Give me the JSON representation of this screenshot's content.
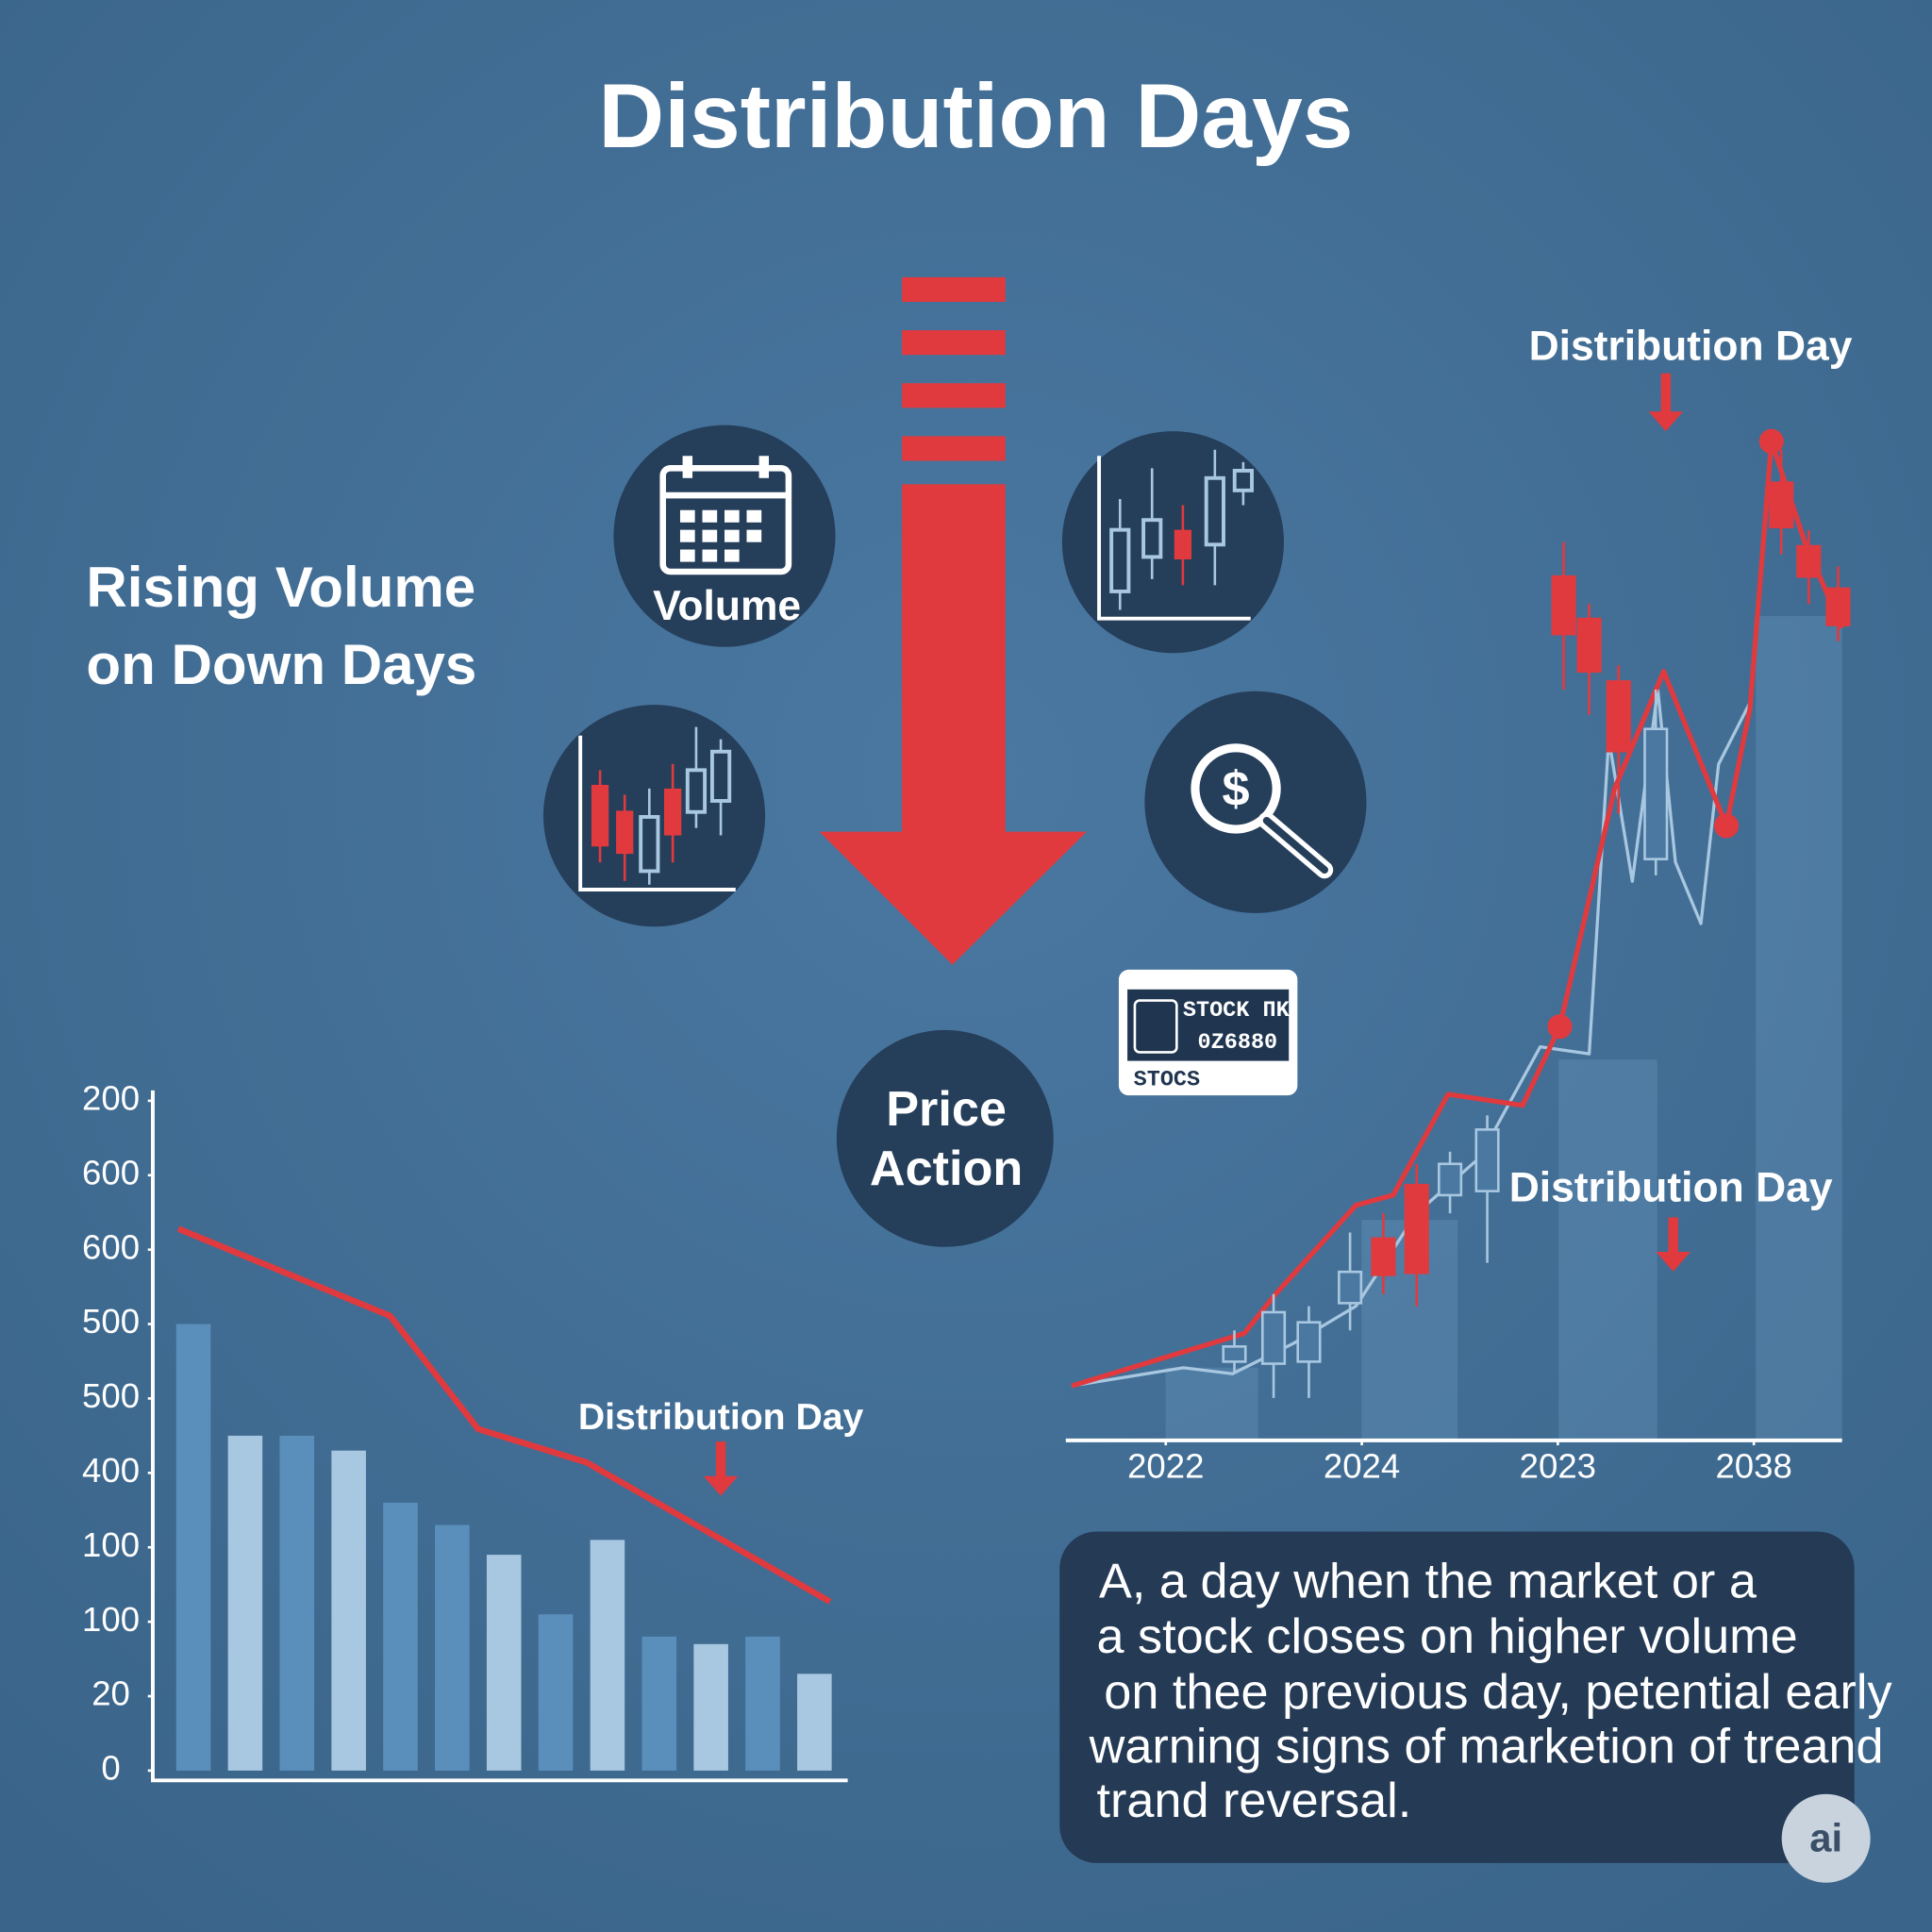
{
  "title": "Distribution Days",
  "subtitle_lines": [
    "Rising Volume",
    "on Down Days"
  ],
  "icons": {
    "volume": "Volume",
    "price_action_lines": [
      "Price",
      "Action"
    ]
  },
  "ticker_card": {
    "lines": [
      "STOCK ΠK",
      "0Z6880",
      "STOCS"
    ]
  },
  "description_lines": [
    "A, a day when the market or a",
    "a stock closes on higher volume",
    "on  thee previous day, petential early",
    "warning signs of marketion of treand",
    "trand reversal."
  ],
  "badge": "ai",
  "chart_data": [
    {
      "type": "bar",
      "categories": [
        null,
        null,
        null,
        null,
        null,
        null,
        null,
        null,
        null,
        null,
        null,
        null,
        null
      ],
      "series": [
        {
          "type": "bar",
          "values": [
            6.0,
            4.5,
            4.5,
            4.3,
            3.6,
            3.3,
            2.9,
            2.1,
            3.1,
            1.8,
            1.7,
            1.8,
            1.3
          ],
          "colors": [
            "#5b8fbb",
            "#a8c7e0",
            "#5b8fbb",
            "#a8c7e0",
            "#5b8fbb",
            "#5b8fbb",
            "#a8c7e0",
            "#5b8fbb",
            "#a8c7e0",
            "#5b8fbb",
            "#a8c7e0",
            "#5b8fbb",
            "#a8c7e0"
          ]
        },
        {
          "type": "line",
          "color": "#e03a3f",
          "x": [
            -0.29,
            3.8,
            5.5,
            7.6,
            12.3
          ],
          "values": [
            7.28,
            6.11,
            4.59,
            4.14,
            2.27
          ]
        }
      ],
      "xlim": [
        -0.5,
        12.5
      ],
      "ylim": [
        0,
        9
      ],
      "yticks": [
        0,
        {
          "value": 1,
          "label": "20"
        },
        {
          "value": 2,
          "label": "100"
        },
        {
          "value": 3,
          "label": "100"
        },
        {
          "value": 4,
          "label": "400"
        },
        {
          "value": 5,
          "label": "500"
        },
        {
          "value": 6,
          "label": "500"
        },
        {
          "value": 7,
          "label": "600"
        },
        {
          "value": 8,
          "label": "600"
        },
        {
          "value": 9,
          "label": "200"
        }
      ],
      "annotations": [
        {
          "text": "Distribution Day"
        }
      ]
    },
    {
      "type": "candlestick",
      "xlim": [
        -0.51,
        3.45
      ],
      "ylim": [
        0,
        100
      ],
      "xticks": [
        {
          "value": 0,
          "label": "2022"
        },
        {
          "value": 1,
          "label": "2024"
        },
        {
          "value": 2,
          "label": "2023"
        },
        {
          "value": 3,
          "label": "2038"
        }
      ],
      "up_color": "#a8c7e0",
      "down_color": "#e03a3f",
      "candles": {
        "x": [
          0.35,
          0.55,
          0.73,
          0.94,
          1.11,
          1.28,
          1.45,
          1.64,
          2.03,
          2.16,
          2.31,
          2.5,
          3.14,
          3.28,
          3.43
        ],
        "open": [
          7.8,
          7.6,
          7.8,
          13.6,
          20.0,
          25.3,
          24.3,
          24.7,
          85.6,
          81.4,
          75.2,
          57.6,
          94.9,
          88.6,
          84.4
        ],
        "close": [
          9.3,
          12.7,
          11.7,
          16.7,
          16.4,
          16.6,
          27.4,
          30.8,
          79.9,
          76.2,
          68.3,
          70.5,
          90.5,
          85.6,
          80.8
        ],
        "high": [
          10.9,
          14.5,
          13.3,
          20.6,
          22.5,
          27.4,
          28.6,
          32.2,
          89.0,
          82.9,
          76.8,
          74.4,
          98.2,
          90.2,
          86.6
        ],
        "low": [
          6.6,
          4.2,
          4.2,
          10.9,
          14.5,
          13.3,
          22.5,
          17.6,
          74.4,
          71.9,
          62.1,
          56.0,
          87.8,
          82.9,
          79.2
        ]
      },
      "series": [
        {
          "type": "line",
          "color": "#a8c7e0",
          "x": [
            -0.48,
            0.09,
            0.34,
            0.65,
            0.97,
            1.28,
            1.6,
            1.91,
            2.16,
            2.26,
            2.38,
            2.51,
            2.6,
            2.73,
            2.82,
            2.98
          ],
          "values": [
            5.4,
            7.2,
            6.6,
            9.6,
            13.3,
            22.5,
            28.0,
            39.0,
            38.3,
            69.5,
            55.4,
            74.4,
            57.3,
            51.2,
            67.0,
            73.1
          ]
        },
        {
          "type": "line",
          "color": "#e03a3f",
          "x": [
            -0.48,
            0.4,
            0.56,
            0.97,
            1.16,
            1.44,
            1.82,
            2.01,
            2.29,
            2.54,
            2.86,
            2.98,
            3.09,
            3.26,
            3.45
          ],
          "values": [
            5.4,
            10.6,
            14.5,
            23.3,
            24.3,
            34.3,
            33.2,
            41.0,
            64.6,
            76.2,
            60.9,
            72.5,
            99.0,
            89.0,
            80.5
          ]
        },
        {
          "type": "scatter",
          "color": "#e03a3f",
          "x": [
            2.01,
            2.86,
            3.09
          ],
          "values": [
            41.0,
            60.9,
            99.0
          ]
        }
      ],
      "annotations": [
        {
          "text": "Distribution Day"
        },
        {
          "text": "Distribution Day"
        }
      ]
    }
  ]
}
